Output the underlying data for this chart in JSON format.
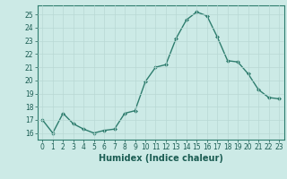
{
  "x": [
    0,
    1,
    2,
    3,
    4,
    5,
    6,
    7,
    8,
    9,
    10,
    11,
    12,
    13,
    14,
    15,
    16,
    17,
    18,
    19,
    20,
    21,
    22,
    23
  ],
  "y": [
    17.0,
    16.0,
    17.5,
    16.7,
    16.3,
    16.0,
    16.2,
    16.3,
    17.5,
    17.7,
    19.9,
    21.0,
    21.2,
    23.2,
    24.6,
    25.2,
    24.9,
    23.3,
    21.5,
    21.4,
    20.5,
    19.3,
    18.7,
    18.6
  ],
  "line_color": "#2e7d6e",
  "marker": "D",
  "marker_size": 2.0,
  "line_width": 1.0,
  "xlabel": "Humidex (Indice chaleur)",
  "xlabel_fontsize": 7,
  "ylim": [
    15.5,
    25.7
  ],
  "xlim": [
    -0.5,
    23.5
  ],
  "yticks": [
    16,
    17,
    18,
    19,
    20,
    21,
    22,
    23,
    24,
    25
  ],
  "xticks": [
    0,
    1,
    2,
    3,
    4,
    5,
    6,
    7,
    8,
    9,
    10,
    11,
    12,
    13,
    14,
    15,
    16,
    17,
    18,
    19,
    20,
    21,
    22,
    23
  ],
  "tick_fontsize": 5.5,
  "bg_color": "#cceae6",
  "grid_color": "#b8d8d4",
  "spine_color": "#2e7d6e",
  "text_color": "#1a5c52"
}
